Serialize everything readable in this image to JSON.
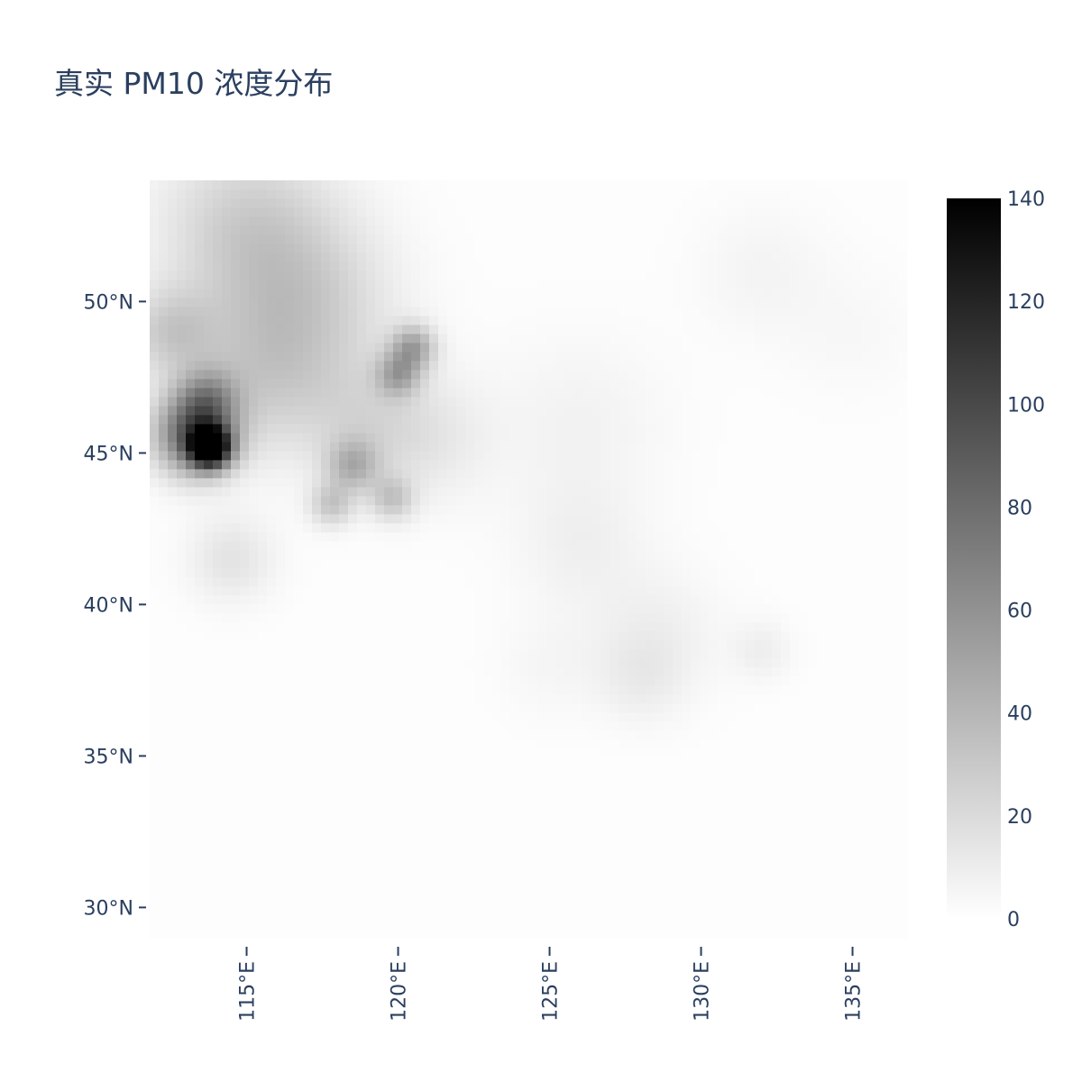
{
  "chart_data": {
    "type": "heatmap",
    "title": "真实 PM10 浓度分布",
    "xlabel": "",
    "ylabel": "",
    "xlim": [
      111.8,
      136.8
    ],
    "ylim": [
      29,
      54
    ],
    "x_ticks": [
      {
        "value": 115,
        "label": "115°E"
      },
      {
        "value": 120,
        "label": "120°E"
      },
      {
        "value": 125,
        "label": "125°E"
      },
      {
        "value": 130,
        "label": "130°E"
      },
      {
        "value": 135,
        "label": "135°E"
      }
    ],
    "y_ticks": [
      {
        "value": 50,
        "label": "50°N"
      },
      {
        "value": 45,
        "label": "45°N"
      },
      {
        "value": 40,
        "label": "40°N"
      },
      {
        "value": 35,
        "label": "35°N"
      },
      {
        "value": 30,
        "label": "30°N"
      }
    ],
    "colorscale": {
      "min": 0,
      "max": 140,
      "colors": [
        "#ffffff",
        "#000000"
      ],
      "ticks": [
        0,
        20,
        40,
        60,
        80,
        100,
        120,
        140
      ]
    },
    "grid": false,
    "legend": "colorbar-right",
    "hotspots": [
      {
        "lon": 113.8,
        "lat": 45.2,
        "value": 140,
        "sigma": 0.45
      },
      {
        "lon": 113.3,
        "lat": 45.6,
        "value": 85,
        "sigma": 0.9
      },
      {
        "lon": 113.7,
        "lat": 46.8,
        "value": 40,
        "sigma": 0.7
      },
      {
        "lon": 120.5,
        "lat": 48.5,
        "value": 45,
        "sigma": 0.5
      },
      {
        "lon": 120.0,
        "lat": 47.6,
        "value": 40,
        "sigma": 0.5
      },
      {
        "lon": 118.5,
        "lat": 44.6,
        "value": 35,
        "sigma": 0.6
      },
      {
        "lon": 119.8,
        "lat": 43.5,
        "value": 28,
        "sigma": 0.5
      },
      {
        "lon": 117.8,
        "lat": 43.3,
        "value": 28,
        "sigma": 0.5
      },
      {
        "lon": 115.0,
        "lat": 52.5,
        "value": 25,
        "sigma": 2.0
      },
      {
        "lon": 117.0,
        "lat": 50.0,
        "value": 22,
        "sigma": 2.0
      },
      {
        "lon": 115.5,
        "lat": 47.5,
        "value": 22,
        "sigma": 1.8
      },
      {
        "lon": 114.5,
        "lat": 41.5,
        "value": 14,
        "sigma": 1.0
      },
      {
        "lon": 112.5,
        "lat": 49.0,
        "value": 25,
        "sigma": 1.0
      },
      {
        "lon": 119.0,
        "lat": 46.0,
        "value": 15,
        "sigma": 1.5
      },
      {
        "lon": 121.0,
        "lat": 45.5,
        "value": 10,
        "sigma": 1.5
      },
      {
        "lon": 126.0,
        "lat": 42.0,
        "value": 7,
        "sigma": 1.5
      },
      {
        "lon": 128.5,
        "lat": 39.0,
        "value": 8,
        "sigma": 1.5
      },
      {
        "lon": 128.0,
        "lat": 37.5,
        "value": 7,
        "sigma": 1.0
      },
      {
        "lon": 132.0,
        "lat": 38.5,
        "value": 8,
        "sigma": 0.7
      },
      {
        "lon": 126.0,
        "lat": 46.0,
        "value": 6,
        "sigma": 2.0
      },
      {
        "lon": 132.0,
        "lat": 51.0,
        "value": 5,
        "sigma": 1.5
      },
      {
        "lon": 135.0,
        "lat": 49.0,
        "value": 3,
        "sigma": 1.5
      },
      {
        "lon": 125.0,
        "lat": 38.0,
        "value": 4,
        "sigma": 1.2
      }
    ],
    "background_value": 1
  }
}
